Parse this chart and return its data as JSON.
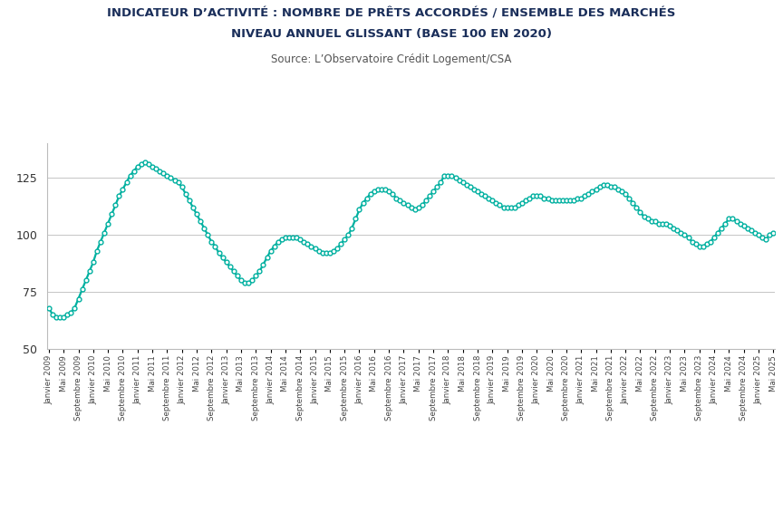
{
  "title_line1": "INDICATEUR D’ACTIVITÉ : NOMBRE DE PRÊTS ACCORDÉS / ENSEMBLE DES MARCHÉS",
  "title_line2": "NIVEAU ANNUEL GLISSANT (BASE 100 EN 2020)",
  "subtitle": "Source: L’Observatoire Crédit Logement/CSA",
  "line_color": "#00b0a0",
  "marker_size": 3.5,
  "line_width": 1.6,
  "ylim": [
    50,
    140
  ],
  "yticks": [
    50,
    75,
    100,
    125
  ],
  "bg_color": "#ffffff",
  "grid_color": "#bbbbbb",
  "title_color": "#1a2e5a",
  "values": [
    68,
    65,
    64,
    64,
    64,
    65,
    66,
    68,
    72,
    76,
    80,
    84,
    88,
    93,
    97,
    101,
    105,
    109,
    113,
    117,
    120,
    123,
    126,
    128,
    130,
    131,
    132,
    131,
    130,
    129,
    128,
    127,
    126,
    125,
    124,
    123,
    121,
    118,
    115,
    112,
    109,
    106,
    103,
    100,
    97,
    95,
    92,
    90,
    88,
    86,
    84,
    82,
    80,
    79,
    79,
    80,
    82,
    84,
    87,
    90,
    93,
    95,
    97,
    98,
    99,
    99,
    99,
    99,
    98,
    97,
    96,
    95,
    94,
    93,
    92,
    92,
    92,
    93,
    94,
    96,
    98,
    100,
    103,
    107,
    111,
    114,
    116,
    118,
    119,
    120,
    120,
    120,
    119,
    118,
    116,
    115,
    114,
    113,
    112,
    111,
    112,
    113,
    115,
    117,
    119,
    121,
    123,
    126,
    126,
    126,
    125,
    124,
    123,
    122,
    121,
    120,
    119,
    118,
    117,
    116,
    115,
    114,
    113,
    112,
    112,
    112,
    112,
    113,
    114,
    115,
    116,
    117,
    117,
    117,
    116,
    116,
    115,
    115,
    115,
    115,
    115,
    115,
    115,
    116,
    116,
    117,
    118,
    119,
    120,
    121,
    122,
    122,
    121,
    121,
    120,
    119,
    118,
    116,
    114,
    112,
    110,
    108,
    107,
    106,
    106,
    105,
    105,
    105,
    104,
    103,
    102,
    101,
    100,
    99,
    97,
    96,
    95,
    95,
    96,
    97,
    99,
    101,
    103,
    105,
    107,
    107,
    106,
    105,
    104,
    103,
    102,
    101,
    100,
    99,
    98,
    100,
    101
  ]
}
